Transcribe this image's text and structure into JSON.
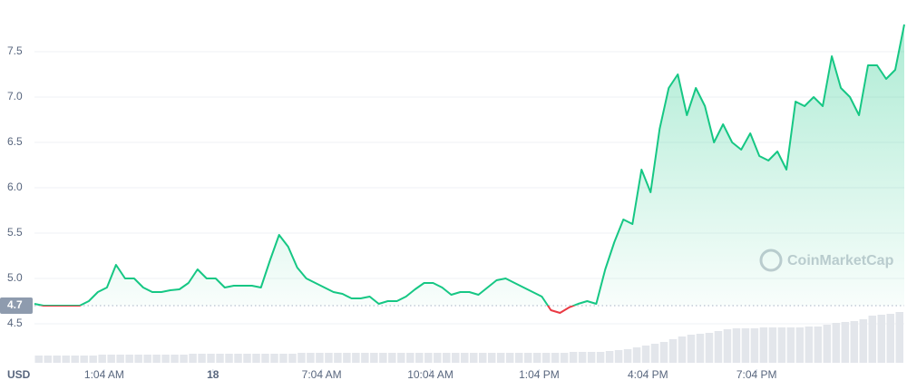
{
  "chart_data": {
    "type": "line",
    "currency": "USD",
    "watermark": "CoinMarketCap",
    "reference": {
      "value": 4.7,
      "label": "4.7"
    },
    "up_color": "#16c784",
    "down_color": "#ea3943",
    "xlim": [
      0,
      96
    ],
    "xticks": [
      {
        "value": 7.7,
        "label": "1:04 AM"
      },
      {
        "value": 19.7,
        "label": "18"
      },
      {
        "value": 31.7,
        "label": "7:04 AM"
      },
      {
        "value": 43.7,
        "label": "10:04 AM"
      },
      {
        "value": 55.7,
        "label": "1:04 PM"
      },
      {
        "value": 67.7,
        "label": "4:04 PM"
      },
      {
        "value": 79.7,
        "label": "7:04 PM"
      }
    ],
    "ylim": [
      4.0,
      7.95
    ],
    "yticks": [
      4.5,
      {
        "value": 5,
        "label": "5.0"
      },
      5.5,
      {
        "value": 6,
        "label": "6.0"
      },
      6.5,
      {
        "value": 7,
        "label": "7.0"
      },
      7.5
    ],
    "grid": true,
    "values": [
      4.72,
      4.7,
      4.7,
      4.7,
      4.7,
      4.7,
      4.75,
      4.85,
      4.9,
      5.15,
      5.0,
      5.0,
      4.9,
      4.85,
      4.85,
      4.87,
      4.88,
      4.95,
      5.1,
      5.0,
      5.0,
      4.9,
      4.92,
      4.92,
      4.92,
      4.9,
      5.2,
      5.48,
      5.35,
      5.12,
      5.0,
      4.95,
      4.9,
      4.85,
      4.83,
      4.78,
      4.78,
      4.8,
      4.72,
      4.75,
      4.75,
      4.8,
      4.88,
      4.95,
      4.95,
      4.9,
      4.82,
      4.85,
      4.85,
      4.82,
      4.9,
      4.98,
      5.0,
      4.95,
      4.9,
      4.85,
      4.8,
      4.65,
      4.62,
      4.68,
      4.72,
      4.75,
      4.72,
      5.1,
      5.4,
      5.65,
      5.6,
      6.2,
      5.95,
      6.65,
      7.1,
      7.25,
      6.8,
      7.1,
      6.9,
      6.5,
      6.7,
      6.5,
      6.42,
      6.6,
      6.35,
      6.3,
      6.4,
      6.2,
      6.95,
      6.9,
      7.0,
      6.9,
      7.45,
      7.1,
      7.0,
      6.8,
      7.35,
      7.35,
      7.2,
      7.3,
      7.8
    ],
    "volume": {
      "color": "#e3e6eb",
      "values": [
        8,
        8,
        8,
        8,
        8,
        8,
        8,
        9,
        9,
        9,
        9,
        9,
        9,
        9,
        9,
        9,
        9,
        10,
        10,
        10,
        10,
        10,
        10,
        10,
        10,
        10,
        10,
        10,
        10,
        11,
        11,
        11,
        11,
        11,
        11,
        11,
        11,
        11,
        11,
        11,
        11,
        11,
        11,
        11,
        11,
        11,
        11,
        11,
        11,
        11,
        11,
        11,
        11,
        11,
        11,
        11,
        11,
        11,
        11,
        12,
        12,
        12,
        12,
        13,
        14,
        15,
        17,
        19,
        21,
        23,
        26,
        29,
        31,
        32,
        33,
        35,
        37,
        38,
        38,
        38,
        39,
        39,
        39,
        39,
        39,
        40,
        40,
        42,
        44,
        45,
        46,
        48,
        52,
        53,
        54,
        56
      ]
    }
  }
}
